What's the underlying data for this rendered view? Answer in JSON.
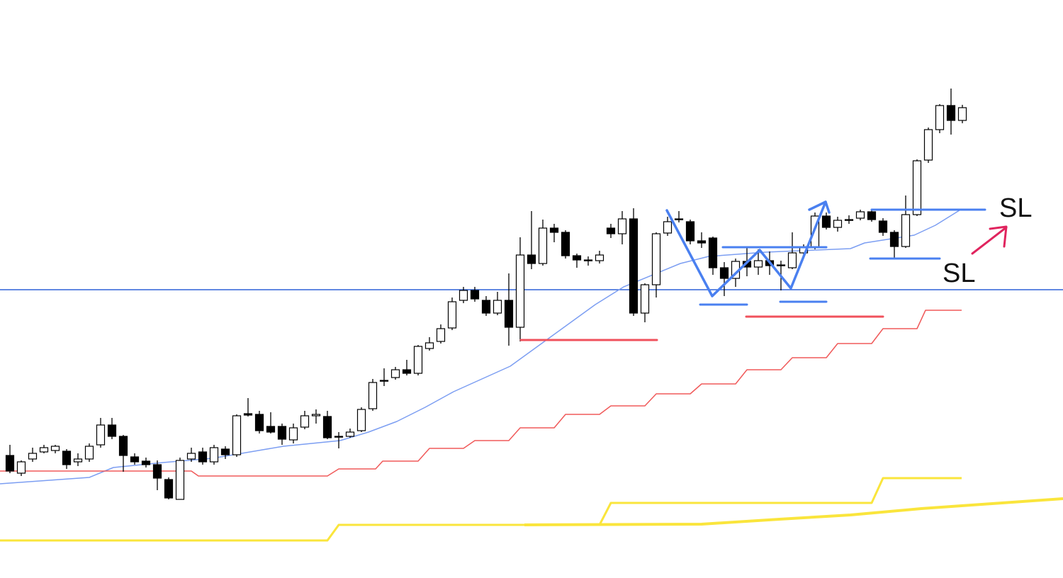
{
  "chart_data": {
    "type": "candlestick",
    "xlim": [
      -0.875,
      92.875
    ],
    "ylim": [
      0,
      816
    ],
    "up_color": "#ffffff",
    "down_color": "#000000",
    "open": [
      173,
      148,
      168,
      178,
      180,
      179,
      164,
      168,
      188,
      216,
      200,
      171,
      165,
      160,
      139,
      111,
      168,
      178,
      164,
      182,
      174,
      232,
      231,
      214,
      214,
      195,
      213,
      229,
      228,
      200,
      200,
      208,
      239,
      279,
      283,
      294,
      289,
      324,
      334,
      353,
      392,
      406,
      392,
      374,
      392,
      354,
      456,
      444,
      494,
      488,
      455,
      448,
      448,
      494,
      486,
      507,
      374,
      414,
      487,
      507,
      503,
      476,
      480,
      438,
      423,
      447,
      439,
      448,
      441,
      438,
      459,
      467,
      511,
      495,
      506,
      508,
      517,
      504,
      488,
      468,
      513,
      590,
      633,
      667,
      646
    ],
    "high": [
      188,
      166,
      184,
      188,
      188,
      182,
      176,
      190,
      226,
      226,
      202,
      176,
      170,
      166,
      142,
      170,
      184,
      184,
      188,
      186,
      231,
      254,
      236,
      234,
      218,
      218,
      236,
      238,
      236,
      206,
      211,
      241,
      281,
      296,
      298,
      308,
      329,
      340,
      358,
      396,
      411,
      411,
      398,
      404,
      430,
      481,
      518,
      506,
      500,
      491,
      458,
      454,
      462,
      500,
      518,
      522,
      416,
      488,
      510,
      518,
      506,
      488,
      482,
      446,
      451,
      468,
      464,
      461,
      448,
      488,
      471,
      516,
      516,
      510,
      512,
      520,
      520,
      508,
      491,
      540,
      591,
      636,
      669,
      691,
      668
    ],
    "low": [
      148,
      144,
      164,
      176,
      176,
      154,
      158,
      164,
      184,
      196,
      150,
      160,
      156,
      124,
      111,
      111,
      164,
      160,
      160,
      168,
      171,
      228,
      204,
      204,
      188,
      190,
      210,
      218,
      196,
      183,
      198,
      206,
      236,
      271,
      280,
      286,
      286,
      321,
      331,
      350,
      388,
      390,
      370,
      371,
      328,
      334,
      436,
      441,
      474,
      451,
      438,
      441,
      444,
      480,
      471,
      370,
      361,
      396,
      483,
      502,
      471,
      466,
      428,
      398,
      411,
      426,
      428,
      428,
      406,
      436,
      454,
      464,
      492,
      489,
      500,
      505,
      503,
      483,
      452,
      466,
      511,
      586,
      628,
      626,
      642
    ],
    "close": [
      151,
      164,
      176,
      184,
      186,
      160,
      168,
      186,
      216,
      200,
      173,
      164,
      160,
      141,
      113,
      166,
      176,
      164,
      184,
      174,
      229,
      230,
      208,
      206,
      196,
      212,
      229,
      231,
      198,
      199,
      206,
      238,
      276,
      278,
      294,
      289,
      327,
      332,
      352,
      390,
      406,
      394,
      374,
      392,
      354,
      456,
      444,
      494,
      488,
      455,
      449,
      449,
      456,
      486,
      507,
      374,
      414,
      486,
      503,
      506,
      476,
      473,
      438,
      423,
      447,
      439,
      448,
      441,
      442,
      459,
      467,
      511,
      495,
      505,
      505,
      517,
      506,
      488,
      468,
      513,
      589,
      633,
      667,
      646,
      664
    ],
    "overlays": [
      {
        "color": "#7c9ef2",
        "x": [
          -0.875,
          7,
          9.125,
          13.5,
          17.875,
          24.125,
          29.125,
          31.625,
          34.125,
          36.625,
          39.125,
          44.125,
          46.625,
          51.625,
          54.125,
          59.125,
          61.625,
          66.625,
          74.125,
          75.375,
          79.75,
          81.625,
          83.9375
        ],
        "values": [
          133,
          142,
          156,
          163,
          169,
          186,
          194,
          206,
          221,
          241,
          263,
          299,
          328,
          386,
          411,
          444,
          454,
          460,
          465,
          473,
          484,
          498,
          521
        ]
      },
      {
        "color": "#f05a5a",
        "x": [
          -0.875,
          16,
          16.625,
          28,
          29,
          32.25,
          32.875,
          36,
          37,
          40,
          41,
          44,
          45,
          48,
          49,
          52,
          53,
          56,
          57,
          60,
          61,
          64,
          65,
          68,
          69,
          72,
          73,
          76,
          77,
          80,
          80.75,
          83.9375
        ],
        "values": [
          151,
          151,
          144,
          144,
          154,
          154,
          165,
          165,
          183,
          183,
          194,
          194,
          212,
          212,
          231,
          231,
          243,
          243,
          260,
          260,
          274,
          274,
          294,
          294,
          311,
          311,
          331,
          331,
          352,
          352,
          378,
          378
        ]
      },
      {
        "color": "#fae53c",
        "x": [
          -0.875,
          28,
          29,
          52,
          53,
          76,
          77,
          83.9375
        ],
        "values": [
          53,
          53,
          75,
          75,
          106,
          106,
          141,
          141
        ]
      },
      {
        "color": "#fae53c",
        "x": [
          45.375,
          61,
          67.875,
          74.125,
          80.375,
          86.625,
          92.875
        ],
        "values": [
          75,
          76,
          83,
          89,
          98,
          105,
          112
        ]
      }
    ],
    "hlines": [
      407
    ],
    "hline_color": "#2e62d8",
    "annotations": [
      "SL",
      "SL"
    ]
  }
}
